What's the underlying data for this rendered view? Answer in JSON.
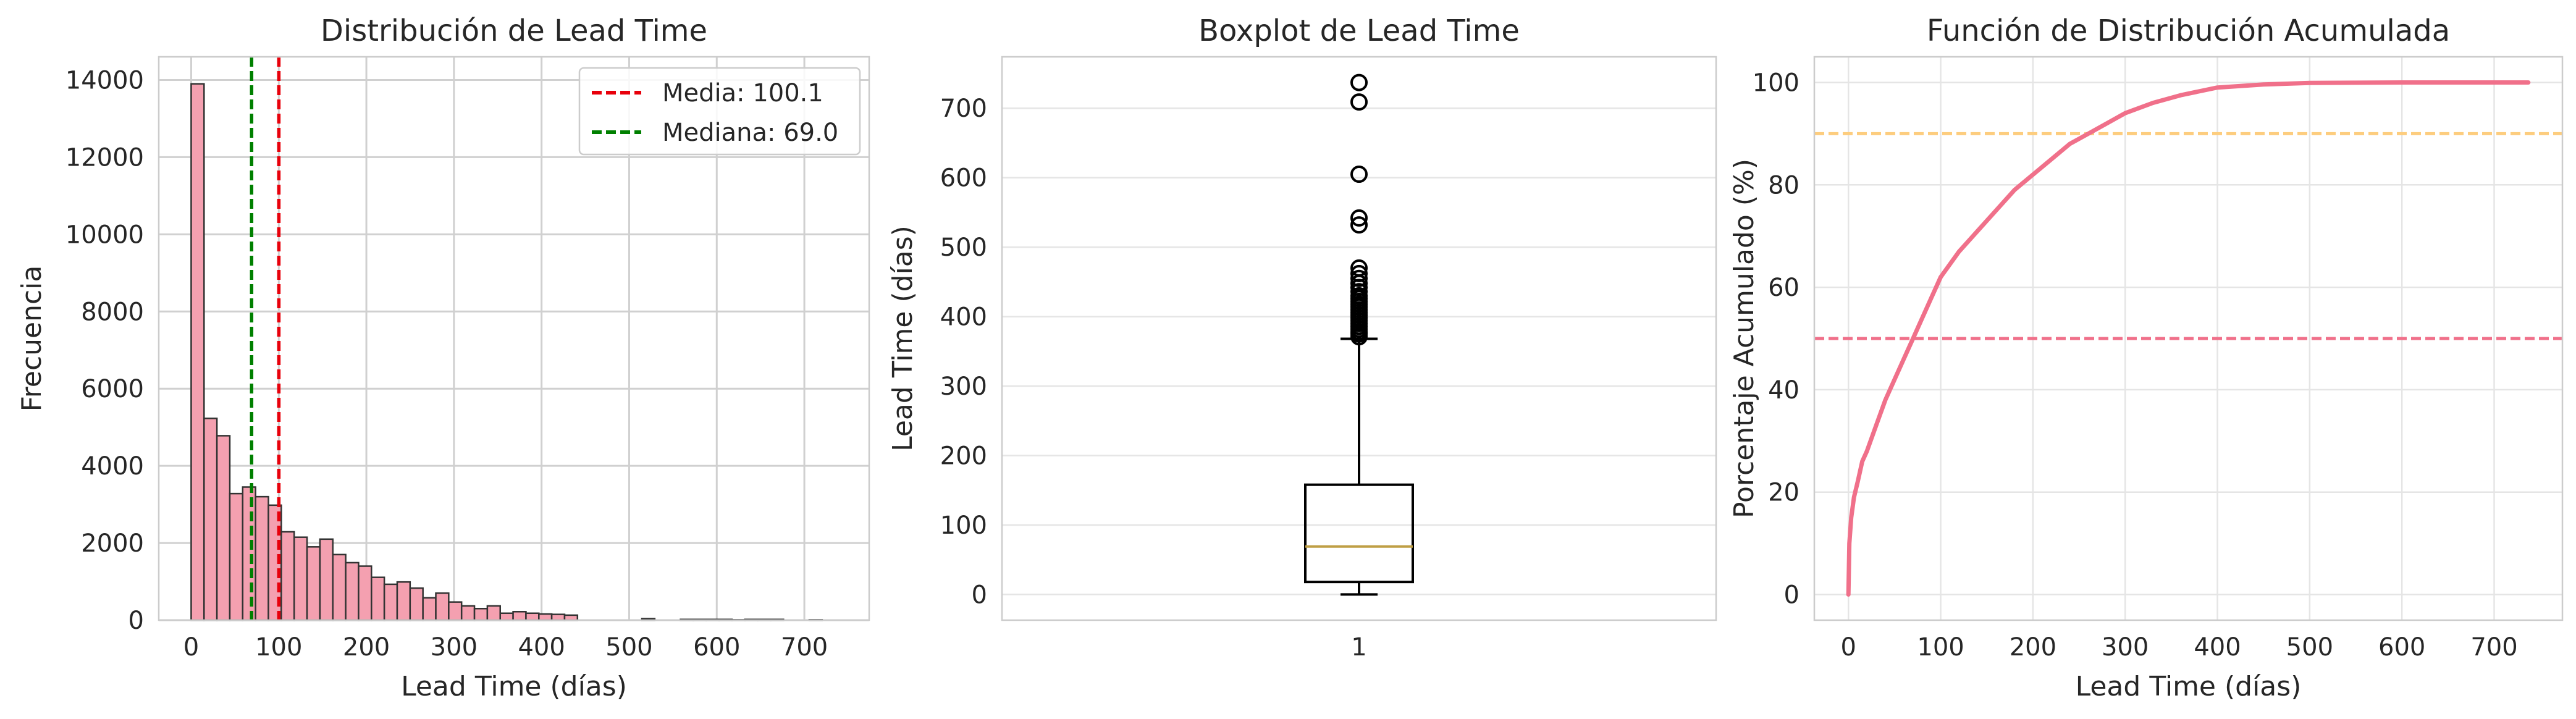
{
  "chart_data": [
    {
      "type": "bar",
      "title": "Distribución de Lead Time",
      "xlabel": "Lead Time (días)",
      "ylabel": "Frecuencia",
      "xlim": [
        -37,
        774
      ],
      "ylim": [
        0,
        14600
      ],
      "xticks": [
        0,
        100,
        200,
        300,
        400,
        500,
        600,
        700
      ],
      "yticks": [
        0,
        2000,
        4000,
        6000,
        8000,
        10000,
        12000,
        14000
      ],
      "grid": true,
      "bar_color": "#f4a0b0",
      "bin_width": 14.7,
      "bin_start": 0,
      "values": [
        13900,
        5230,
        4780,
        3280,
        3450,
        3200,
        2980,
        2290,
        2150,
        1900,
        2100,
        1700,
        1490,
        1400,
        1110,
        930,
        990,
        830,
        580,
        700,
        470,
        370,
        300,
        370,
        180,
        220,
        180,
        160,
        150,
        130,
        0,
        0,
        0,
        0,
        0,
        40,
        0,
        0,
        20,
        20,
        20,
        20,
        10,
        20,
        20,
        20,
        0,
        0,
        10,
        0
      ],
      "vlines": [
        {
          "label": "Media: 100.1",
          "x": 100.1,
          "color": "#e8000b"
        },
        {
          "label": "Mediana: 69.0",
          "x": 69.0,
          "color": "#008000"
        }
      ],
      "legend": "top-right"
    },
    {
      "type": "boxplot",
      "title": "Boxplot de Lead Time",
      "ylabel": "Lead Time (días)",
      "category": "1",
      "ylim": [
        -37,
        774
      ],
      "yticks": [
        0,
        100,
        200,
        300,
        400,
        500,
        600,
        700
      ],
      "grid": true,
      "whisker_low": 0,
      "q1": 18,
      "median": 69,
      "q3": 158,
      "whisker_high": 368,
      "median_color": "#bf9f45",
      "outliers": [
        371,
        375,
        378,
        382,
        386,
        390,
        394,
        398,
        402,
        406,
        410,
        414,
        418,
        422,
        426,
        430,
        436,
        442,
        448,
        455,
        462,
        470,
        532,
        542,
        605,
        709,
        737
      ]
    },
    {
      "type": "line",
      "title": "Función de Distribución Acumulada",
      "xlabel": "Lead Time (días)",
      "ylabel": "Porcentaje Acumulado (%)",
      "xlim": [
        -37,
        774
      ],
      "ylim": [
        -5,
        105
      ],
      "xticks": [
        0,
        100,
        200,
        300,
        400,
        500,
        600,
        700
      ],
      "yticks": [
        0,
        20,
        40,
        60,
        80,
        100
      ],
      "grid": true,
      "line_color": "#f0708a",
      "x": [
        0,
        1,
        3,
        6,
        10,
        15,
        20,
        30,
        40,
        50,
        60,
        70,
        80,
        90,
        100,
        120,
        140,
        160,
        180,
        200,
        220,
        240,
        260,
        280,
        300,
        330,
        360,
        400,
        450,
        500,
        550,
        600,
        650,
        700,
        737
      ],
      "y": [
        0,
        10,
        15,
        19,
        22,
        26,
        28,
        33,
        38,
        42,
        46,
        50,
        54,
        58,
        62,
        67,
        71,
        75,
        79,
        82,
        85,
        88,
        90,
        92,
        94,
        96,
        97.5,
        99,
        99.6,
        99.9,
        99.95,
        100,
        100,
        100,
        100
      ],
      "hlines": [
        {
          "y": 50,
          "color": "#f0708a"
        },
        {
          "y": 90,
          "color": "#fdcd7e"
        }
      ]
    }
  ]
}
